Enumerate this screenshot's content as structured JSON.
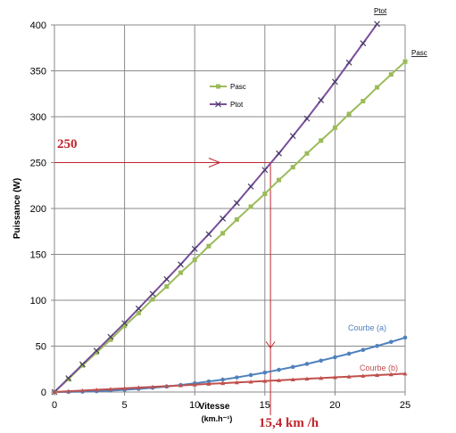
{
  "colors": {
    "gridline": "#8a8a8a",
    "axis": "#888888",
    "annotation_red": "#c0262d",
    "pasc_green": "#9bbb59",
    "ptot_purple": "#7a4f9c",
    "courbe_a_blue": "#4f81bd",
    "courbe_b_red": "#c0504d"
  },
  "chart_data": {
    "type": "line",
    "title": "",
    "xlabel": "Vitesse",
    "xlabel_unit": "(km.h⁻¹)",
    "ylabel": "Puissance (W)",
    "xlim": [
      0,
      25
    ],
    "ylim": [
      0,
      400
    ],
    "x_ticks": [
      "0",
      "5",
      "10",
      "15",
      "20",
      "25"
    ],
    "y_ticks": [
      "0",
      "50",
      "100",
      "150",
      "200",
      "250",
      "300",
      "350",
      "400"
    ],
    "grid": true,
    "legend_position": "upper-left inside plot",
    "legend": [
      {
        "label": "Pasc",
        "color": "#9bbb59",
        "marker": "square"
      },
      {
        "label": "Ptot",
        "color": "#7a4f9c",
        "marker": "cross"
      }
    ],
    "series": [
      {
        "name": "Pasc",
        "end_label": "Pasc",
        "color": "#9bbb59",
        "marker": "square",
        "x": [
          0,
          1,
          2,
          3,
          4,
          5,
          6,
          7,
          8,
          9,
          10,
          11,
          12,
          13,
          14,
          15,
          16,
          17,
          18,
          19,
          20,
          21,
          22,
          23,
          24,
          25
        ],
        "y": [
          0,
          14,
          29,
          43,
          57,
          72,
          86,
          101,
          115,
          130,
          144,
          159,
          173,
          188,
          202,
          216,
          231,
          245,
          260,
          274,
          288,
          303,
          317,
          332,
          346,
          360
        ]
      },
      {
        "name": "Ptot",
        "end_label": "Ptot",
        "color": "#7a4f9c",
        "marker": "cross",
        "x": [
          0,
          1,
          2,
          3,
          4,
          5,
          6,
          7,
          8,
          9,
          10,
          11,
          12,
          13,
          14,
          15,
          16,
          17,
          18,
          19,
          20,
          21,
          22,
          23
        ],
        "y": [
          0,
          15,
          30,
          45,
          60,
          75,
          91,
          107,
          123,
          139,
          156,
          172,
          189,
          206,
          224,
          242,
          260,
          279,
          298,
          318,
          338,
          359,
          380,
          401
        ]
      },
      {
        "name": "Courbe (a)",
        "color": "#4f81bd",
        "marker": "circle",
        "x": [
          0,
          1,
          2,
          3,
          4,
          5,
          6,
          7,
          8,
          9,
          10,
          11,
          12,
          13,
          14,
          15,
          16,
          17,
          18,
          19,
          20,
          21,
          22,
          23,
          24,
          25
        ],
        "y": [
          0,
          0.1,
          0.4,
          0.9,
          1.6,
          2.4,
          3.4,
          4.6,
          6,
          7.6,
          9.5,
          11.5,
          13.5,
          15.9,
          18.5,
          21.2,
          24.2,
          27.3,
          30.6,
          34.2,
          37.9,
          41.8,
          45.9,
          50.2,
          54.6,
          59.3
        ]
      },
      {
        "name": "Courbe (b)",
        "color": "#c0504d",
        "marker": "triangle",
        "x": [
          0,
          1,
          2,
          3,
          4,
          5,
          6,
          7,
          8,
          9,
          10,
          11,
          12,
          13,
          14,
          15,
          16,
          17,
          18,
          19,
          20,
          21,
          22,
          23,
          24,
          25
        ],
        "y": [
          0,
          0.8,
          1.6,
          2.4,
          3.2,
          4,
          4.8,
          5.6,
          6.4,
          7.2,
          8,
          8.8,
          9.6,
          10.4,
          11.2,
          12,
          12.8,
          13.6,
          14.4,
          15.2,
          16,
          16.8,
          17.6,
          18.4,
          19.2,
          20
        ]
      }
    ],
    "annotations": {
      "y_marker_label": "250",
      "y_marker_value": 250,
      "x_marker_label": "15,4 km /h",
      "x_marker_value": 15.4,
      "curve_a_label": "Courbe (a)",
      "curve_b_label": "Courbe (b)"
    }
  }
}
